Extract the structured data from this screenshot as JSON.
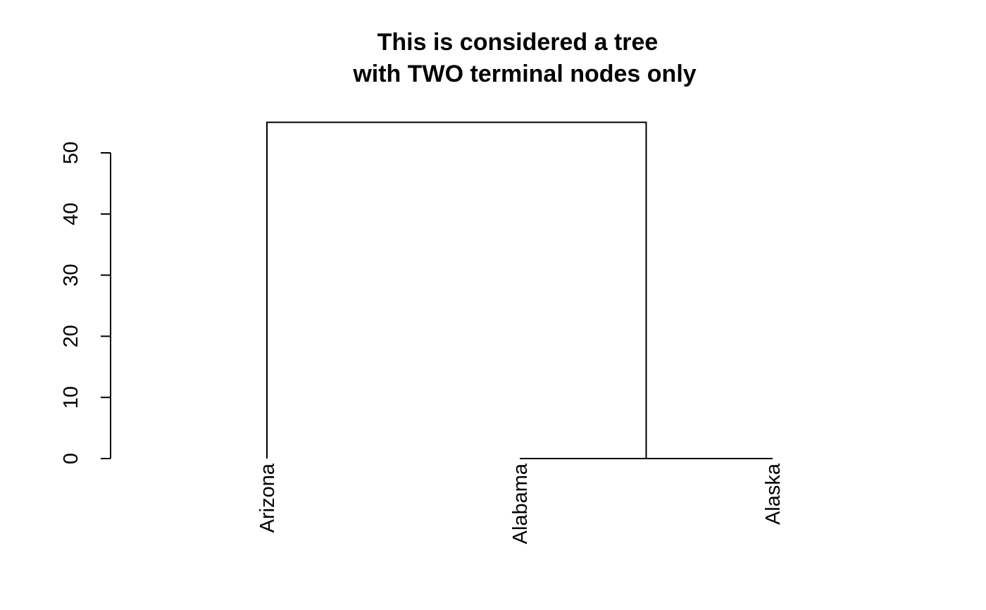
{
  "chart_data": {
    "type": "dendrogram",
    "title_lines": [
      "This is considered a tree",
      "with TWO terminal nodes only"
    ],
    "xlabel": "",
    "ylabel": "",
    "ylim": [
      0,
      55
    ],
    "y_ticks": [
      0,
      10,
      20,
      30,
      40,
      50
    ],
    "y_tick_labels": [
      "0",
      "10",
      "20",
      "30",
      "40",
      "50"
    ],
    "leaves": [
      "Arizona",
      "Alabama",
      "Alaska"
    ],
    "merges": [
      {
        "left": "Alabama",
        "right": "Alaska",
        "height": 0
      },
      {
        "left": "Arizona",
        "right": "Alabama+Alaska",
        "height": 55
      }
    ],
    "line_color": "#000000",
    "grid": false
  }
}
